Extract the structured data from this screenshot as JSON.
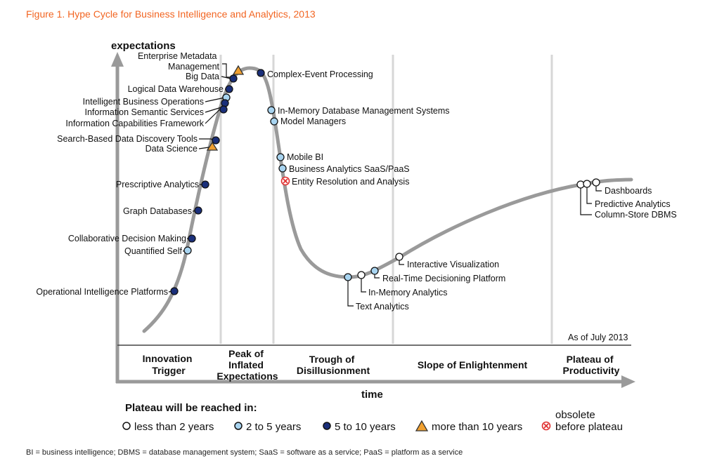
{
  "title": "Figure 1. Hype Cycle for Business Intelligence and Analytics, 2013",
  "axes": {
    "y_label": "expectations",
    "x_label": "time"
  },
  "as_of": "As of July 2013",
  "phases": {
    "innovation": [
      "Innovation",
      "Trigger"
    ],
    "peak": [
      "Peak of",
      "Inflated",
      "Expectations"
    ],
    "trough": [
      "Trough of",
      "Disillusionment"
    ],
    "slope": [
      "Slope of Enlightenment"
    ],
    "plateau": [
      "Plateau of",
      "Productivity"
    ]
  },
  "technologies": {
    "enterprise_metadata": [
      "Enterprise Metadata",
      "Management"
    ],
    "big_data": "Big Data",
    "logical_dw": "Logical Data Warehouse",
    "ibo": "Intelligent Business Operations",
    "iss": "Information Semantic Services",
    "icf": "Information Capabilities Framework",
    "sbdd": "Search-Based Data Discovery Tools",
    "data_science": "Data Science",
    "prescriptive": "Prescriptive Analytics",
    "graph_db": "Graph Databases",
    "collab": "Collaborative Decision Making",
    "quantified": "Quantified Self",
    "oip": "Operational Intelligence Platforms",
    "cep": "Complex-Event Processing",
    "imdbms": "In-Memory Database Management Systems",
    "model_mgr": "Model Managers",
    "mobile_bi": "Mobile BI",
    "ba_saas": "Business Analytics SaaS/PaaS",
    "entity_res": "Entity Resolution and Analysis",
    "text_analytics": "Text Analytics",
    "in_memory_analytics": "In-Memory Analytics",
    "rtdp": "Real-Time Decisioning Platform",
    "interactive_viz": "Interactive Visualization",
    "dashboards": "Dashboards",
    "predictive": "Predictive Analytics",
    "column_store": "Column-Store DBMS"
  },
  "legend": {
    "title": "Plateau will be reached in:",
    "items": {
      "lt2": "less than 2 years",
      "two_five": "2 to 5 years",
      "five_ten": "5 to 10 years",
      "gt10": "more than 10 years",
      "obsolete": [
        "obsolete",
        "before plateau"
      ]
    }
  },
  "footnote": "BI = business intelligence; DBMS = database management system; SaaS = software as a service; PaaS = platform as a service",
  "colors": {
    "title": "#f26522",
    "curve": "#9a9a9a",
    "axis": "#9a9a9a",
    "lt2": "#ffffff",
    "two_five": "#a8d4f0",
    "five_ten": "#1a2f7a",
    "gt10": "#f0a030",
    "obsolete": "#e03030"
  }
}
